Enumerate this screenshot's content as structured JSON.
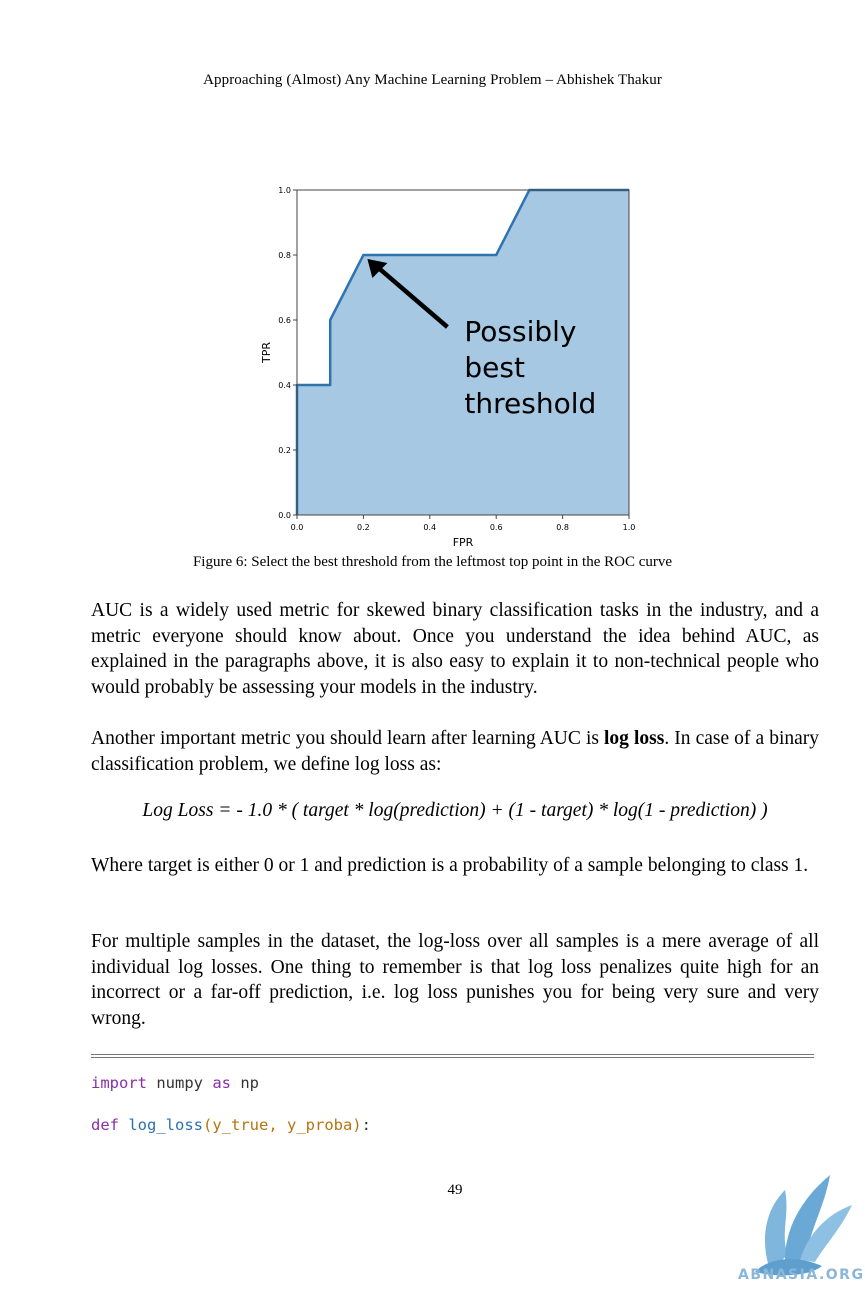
{
  "header": "Approaching (Almost) Any Machine Learning Problem – Abhishek Thakur",
  "chart_data": {
    "type": "area",
    "x": [
      0.0,
      0.0,
      0.1,
      0.1,
      0.2,
      0.6,
      0.7,
      1.0
    ],
    "y": [
      0.0,
      0.4,
      0.4,
      0.6,
      0.8,
      0.8,
      1.0,
      1.0
    ],
    "xlabel": "FPR",
    "ylabel": "TPR",
    "xlim": [
      0.0,
      1.0
    ],
    "ylim": [
      0.0,
      1.0
    ],
    "xticks": [
      "0.0",
      "0.2",
      "0.4",
      "0.6",
      "0.8",
      "1.0"
    ],
    "yticks": [
      "0.0",
      "0.2",
      "0.4",
      "0.6",
      "0.8",
      "1.0"
    ],
    "annotation": [
      "Possibly",
      "best",
      "threshold"
    ],
    "annotation_point": [
      0.2,
      0.8
    ],
    "line_color": "#2f74b0",
    "fill_color": "#a6c8e2"
  },
  "caption": "Figure 6: Select the best threshold from the leftmost top point in the ROC curve",
  "p1": "AUC is a widely used metric for skewed binary classification tasks in the industry, and a metric everyone should know about. Once you understand the idea behind AUC, as explained in the paragraphs above, it is also easy to explain it to non-technical people who would probably be assessing your models in the industry.",
  "p2_before": "Another important metric you should learn after learning AUC is ",
  "p2_bold": "log loss",
  "p2_after": ". In case of a binary classification problem, we define log loss as:",
  "formula": "Log Loss = - 1.0 * ( target * log(prediction) + (1 - target) * log(1 - prediction) )",
  "p3": "Where target is either 0 or 1 and prediction is a probability of a sample belonging to class 1.",
  "p4": "For multiple samples in the dataset, the log-loss over all samples is a mere average of all individual log losses. One thing to remember is that log loss penalizes quite high for an incorrect or a far-off prediction, i.e. log loss punishes you for being very sure and very wrong.",
  "code": {
    "l1_kw1": "import",
    "l1_mod": " numpy ",
    "l1_kw2": "as",
    "l1_alias": " np",
    "l2_kw": "def",
    "l2_fn": "log_loss",
    "l2_args": "(y_true, y_proba)",
    "l2_colon": ":"
  },
  "page_number": "49",
  "watermark": "ABNASIA.ORG"
}
